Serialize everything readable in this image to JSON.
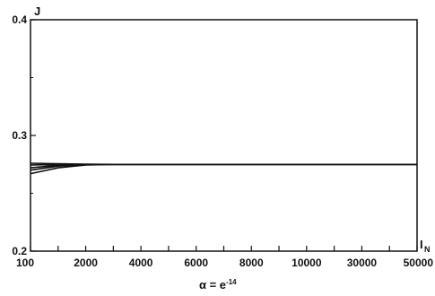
{
  "chart_data": {
    "type": "line",
    "title": "",
    "ylabel": "J",
    "xlabel_main": "I",
    "xlabel_sub": "N",
    "caption_prefix": "α = e",
    "caption_exp": "-14",
    "x_ticks": [
      "100",
      "2000",
      "4000",
      "6000",
      "8000",
      "10000",
      "30000",
      "50000"
    ],
    "y_ticks": [
      "0.2",
      "0.3",
      "0.4"
    ],
    "ylim": [
      0.2,
      0.4
    ],
    "grid": false,
    "series": [
      {
        "x": [
          0,
          0.5,
          1,
          1.5,
          2,
          3,
          4,
          5,
          6,
          7
        ],
        "y": [
          0.267,
          0.272,
          0.2745,
          0.275,
          0.275,
          0.275,
          0.275,
          0.275,
          0.275,
          0.275
        ]
      },
      {
        "x": [
          0,
          0.5,
          1,
          1.5,
          2,
          3,
          4,
          5,
          6,
          7
        ],
        "y": [
          0.27,
          0.2735,
          0.2748,
          0.275,
          0.275,
          0.275,
          0.275,
          0.275,
          0.275,
          0.275
        ]
      },
      {
        "x": [
          0,
          0.5,
          1,
          1.5,
          2,
          3,
          4,
          5,
          6,
          7
        ],
        "y": [
          0.272,
          0.2742,
          0.275,
          0.275,
          0.275,
          0.275,
          0.275,
          0.275,
          0.275,
          0.275
        ]
      },
      {
        "x": [
          0,
          0.5,
          1,
          1.5,
          2,
          3,
          4,
          5,
          6,
          7
        ],
        "y": [
          0.2745,
          0.2748,
          0.275,
          0.275,
          0.275,
          0.275,
          0.275,
          0.275,
          0.275,
          0.275
        ]
      },
      {
        "x": [
          0,
          0.5,
          1,
          1.5,
          2,
          3,
          4,
          5,
          6,
          7
        ],
        "y": [
          0.276,
          0.2755,
          0.2752,
          0.275,
          0.275,
          0.275,
          0.275,
          0.275,
          0.275,
          0.275
        ]
      }
    ]
  }
}
